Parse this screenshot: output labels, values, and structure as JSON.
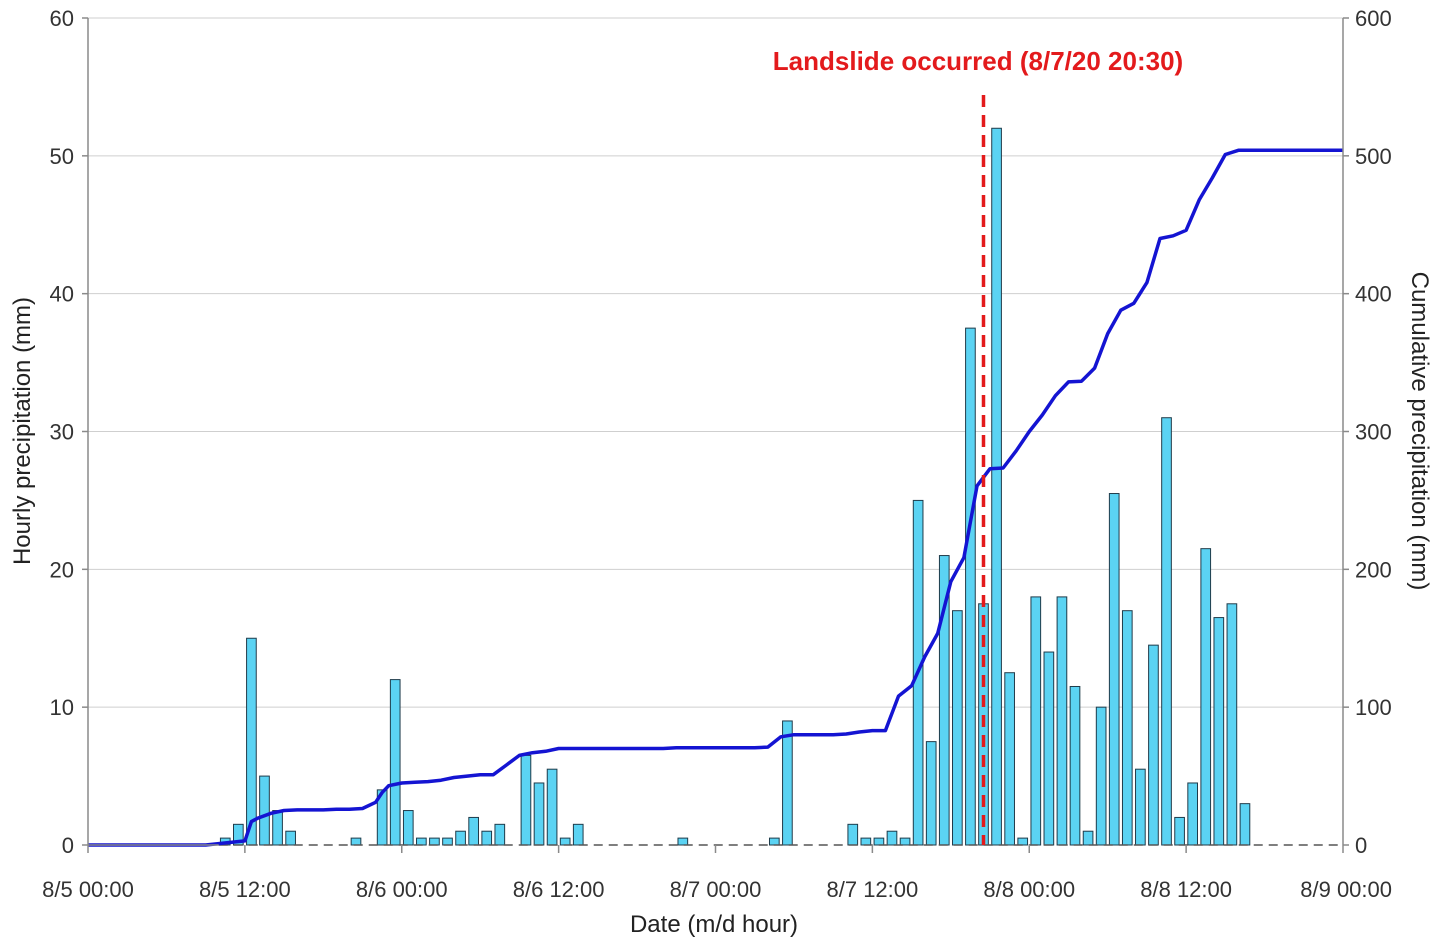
{
  "chart_data": {
    "type": "bar+line",
    "title": "",
    "xlabel": "Date (m/d hour)",
    "ylabel_left": "Hourly precipitation (mm)",
    "ylabel_right": "Cumulative precipitation (mm)",
    "x_ticks": [
      "8/5 00:00",
      "8/5 12:00",
      "8/6 00:00",
      "8/6 12:00",
      "8/7 00:00",
      "8/7 12:00",
      "8/8 00:00",
      "8/8 12:00",
      "8/9 00:00"
    ],
    "x_range_hours": [
      0,
      96
    ],
    "y_left_range": [
      0,
      60
    ],
    "y_left_ticks": [
      0,
      10,
      20,
      30,
      40,
      50,
      60
    ],
    "y_right_range": [
      0,
      600
    ],
    "y_right_ticks": [
      0,
      100,
      200,
      300,
      400,
      500,
      600
    ],
    "grid": "horizontal",
    "series": [
      {
        "name": "Hourly precipitation",
        "type": "bar",
        "axis": "left",
        "color": "#5bd3f3",
        "edge_color": "#1f3b4a",
        "hours_from_start": [
          10,
          11,
          12,
          13,
          14,
          15,
          20,
          22,
          23,
          24,
          25,
          26,
          27,
          28,
          29,
          30,
          31,
          33,
          34,
          35,
          36,
          37,
          45,
          52,
          53,
          58,
          59,
          60,
          61,
          62,
          63,
          64,
          65,
          66,
          67,
          68,
          69,
          70,
          71,
          72,
          73,
          74,
          75,
          76,
          77,
          78,
          79,
          80,
          81,
          82,
          83,
          84,
          85,
          86,
          87,
          88,
          89,
          90
        ],
        "values": [
          0.5,
          1.5,
          15,
          5,
          2.5,
          1,
          0.5,
          4,
          12,
          2.5,
          0.5,
          0.5,
          0.5,
          1,
          2,
          1,
          1.5,
          6.5,
          4.5,
          5.5,
          0.5,
          1.5,
          0.5,
          0.5,
          9,
          1.5,
          0.5,
          0.5,
          1,
          0.5,
          25,
          7.5,
          21,
          17,
          37.5,
          17.5,
          52,
          12.5,
          0.5,
          18,
          14,
          18,
          11.5,
          1,
          10,
          25.5,
          17,
          5.5,
          14.5,
          31,
          2,
          4.5,
          21.5,
          16.5,
          17.5,
          3,
          0,
          0
        ]
      },
      {
        "name": "Cumulative precipitation",
        "type": "line",
        "axis": "right",
        "color": "#1414d2",
        "x_hours": [
          0,
          9,
          10,
          11,
          12,
          12.5,
          13,
          14,
          15,
          16,
          17,
          18,
          19,
          20,
          21,
          22,
          22.5,
          23,
          24,
          25,
          26,
          27,
          28,
          29,
          30,
          31,
          32,
          33,
          34,
          35,
          36,
          37,
          38,
          39,
          40,
          41,
          42,
          43,
          44,
          45,
          46,
          47,
          48,
          49,
          50,
          51,
          52,
          53,
          54,
          55,
          56,
          57,
          58,
          59,
          60,
          61,
          62,
          63,
          64,
          65,
          66,
          67,
          68,
          69,
          70,
          71,
          72,
          73,
          74,
          75,
          76,
          77,
          78,
          79,
          80,
          81,
          82,
          83,
          84,
          85,
          86,
          87,
          88,
          89,
          90,
          91,
          92,
          93,
          94,
          95,
          96
        ],
        "values": [
          0,
          0,
          1,
          2,
          3,
          17,
          19.5,
          23,
          25,
          25.5,
          25.5,
          25.5,
          26,
          26,
          26.5,
          31,
          38,
          43,
          45,
          45.5,
          46,
          47,
          49,
          50,
          51,
          51,
          58,
          65,
          67,
          68,
          70,
          70,
          70,
          70,
          70,
          70,
          70,
          70,
          70,
          70.5,
          70.5,
          70.5,
          70.5,
          70.5,
          70.5,
          70.5,
          71,
          78.5,
          80,
          80,
          80,
          80,
          80.5,
          82,
          83,
          83,
          108,
          115.5,
          136.5,
          153.5,
          191,
          208.5,
          260.5,
          273,
          273.5,
          286,
          300,
          312,
          326,
          336,
          336.5,
          346,
          371,
          388,
          393,
          408,
          440,
          442,
          446,
          468,
          484,
          501,
          504,
          504,
          504,
          504,
          504,
          504,
          504,
          504,
          504
        ]
      }
    ],
    "annotations": [
      {
        "text": "Landslide occurred (8/7/20 20:30)",
        "x_hours": 68.5,
        "style": "dashed-vertical",
        "color": "#e31a1c"
      }
    ],
    "legend": "none"
  }
}
